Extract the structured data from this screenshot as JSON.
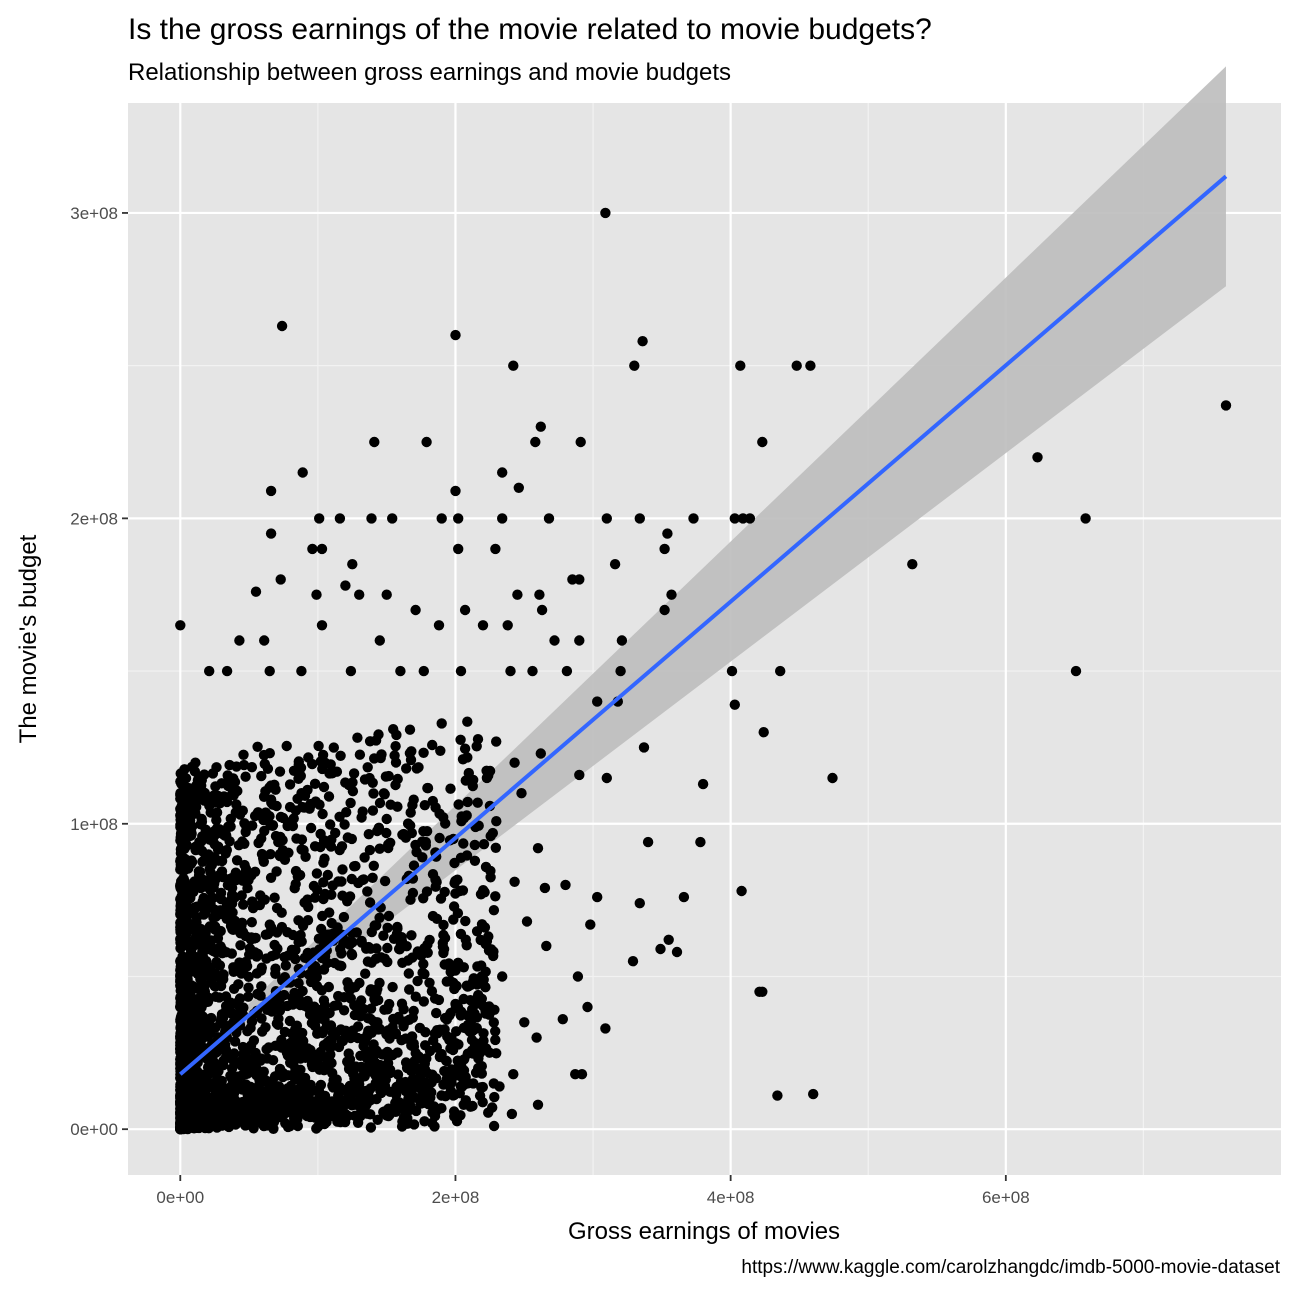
{
  "header": {
    "title": "Is the gross earnings of the movie related to movie budgets?",
    "subtitle": "Relationship between gross earnings and movie budgets"
  },
  "caption": "https://www.kaggle.com/carolzhangdc/imdb-5000-movie-dataset",
  "colors": {
    "panel": "#e5e5e5",
    "grid_major": "#ffffff",
    "grid_minor": "#f2f2f2",
    "points": "#000000",
    "fit_line": "#3366ff",
    "ribbon": "#bdbdbd"
  },
  "chart_data": {
    "type": "scatter",
    "title": "Is the gross earnings of the movie related to movie budgets?",
    "subtitle": "Relationship between gross earnings and movie budgets",
    "xlabel": "Gross earnings of movies",
    "ylabel": "The movie's budget",
    "xlim": [
      -38000000,
      800000000
    ],
    "ylim": [
      -15000000,
      336000000
    ],
    "xticks": [
      0,
      200000000,
      400000000,
      600000000
    ],
    "xtick_labels": [
      "0e+00",
      "2e+08",
      "4e+08",
      "6e+08"
    ],
    "yticks": [
      0,
      100000000,
      200000000,
      300000000
    ],
    "ytick_labels": [
      "0e+00",
      "1e+08",
      "2e+08",
      "3e+08"
    ],
    "grid": true,
    "points": [
      [
        309000000,
        300000000
      ],
      [
        74000000,
        263000000
      ],
      [
        200000000,
        260000000
      ],
      [
        336000000,
        258000000
      ],
      [
        242000000,
        250000000
      ],
      [
        330000000,
        250000000
      ],
      [
        407000000,
        250000000
      ],
      [
        448000000,
        250000000
      ],
      [
        458000000,
        250000000
      ],
      [
        760000000,
        237000000
      ],
      [
        262000000,
        230000000
      ],
      [
        141000000,
        225000000
      ],
      [
        179000000,
        225000000
      ],
      [
        258000000,
        225000000
      ],
      [
        291000000,
        225000000
      ],
      [
        423000000,
        225000000
      ],
      [
        623000000,
        220000000
      ],
      [
        89000000,
        215000000
      ],
      [
        234000000,
        215000000
      ],
      [
        66000000,
        209000000
      ],
      [
        200000000,
        209000000
      ],
      [
        246000000,
        210000000
      ],
      [
        658000000,
        200000000
      ],
      [
        310000000,
        200000000
      ],
      [
        334000000,
        200000000
      ],
      [
        373000000,
        200000000
      ],
      [
        403000000,
        200000000
      ],
      [
        409000000,
        200000000
      ],
      [
        414000000,
        200000000
      ],
      [
        268000000,
        200000000
      ],
      [
        234000000,
        200000000
      ],
      [
        101000000,
        200000000
      ],
      [
        116000000,
        200000000
      ],
      [
        139000000,
        200000000
      ],
      [
        154000000,
        200000000
      ],
      [
        190000000,
        200000000
      ],
      [
        202000000,
        200000000
      ],
      [
        66000000,
        195000000
      ],
      [
        96000000,
        190000000
      ],
      [
        103000000,
        190000000
      ],
      [
        202000000,
        190000000
      ],
      [
        229000000,
        190000000
      ],
      [
        352000000,
        190000000
      ],
      [
        354000000,
        195000000
      ],
      [
        532000000,
        185000000
      ],
      [
        316000000,
        185000000
      ],
      [
        261000000,
        175000000
      ],
      [
        290000000,
        180000000
      ],
      [
        125000000,
        185000000
      ],
      [
        120000000,
        178000000
      ],
      [
        73000000,
        180000000
      ],
      [
        55000000,
        176000000
      ],
      [
        99000000,
        175000000
      ],
      [
        130000000,
        175000000
      ],
      [
        150000000,
        175000000
      ],
      [
        171000000,
        170000000
      ],
      [
        207000000,
        170000000
      ],
      [
        352000000,
        170000000
      ],
      [
        357000000,
        175000000
      ],
      [
        245000000,
        175000000
      ],
      [
        285000000,
        180000000
      ],
      [
        263000000,
        170000000
      ],
      [
        0,
        165000000
      ],
      [
        188000000,
        165000000
      ],
      [
        220000000,
        165000000
      ],
      [
        238000000,
        165000000
      ],
      [
        272000000,
        160000000
      ],
      [
        290000000,
        160000000
      ],
      [
        321000000,
        160000000
      ],
      [
        43000000,
        160000000
      ],
      [
        61000000,
        160000000
      ],
      [
        145000000,
        160000000
      ],
      [
        103000000,
        165000000
      ],
      [
        651000000,
        150000000
      ],
      [
        436000000,
        150000000
      ],
      [
        401000000,
        150000000
      ],
      [
        281000000,
        150000000
      ],
      [
        256000000,
        150000000
      ],
      [
        240000000,
        150000000
      ],
      [
        320000000,
        150000000
      ],
      [
        21000000,
        150000000
      ],
      [
        34000000,
        150000000
      ],
      [
        65000000,
        150000000
      ],
      [
        88000000,
        150000000
      ],
      [
        124000000,
        150000000
      ],
      [
        160000000,
        150000000
      ],
      [
        177000000,
        150000000
      ],
      [
        204000000,
        150000000
      ],
      [
        403000000,
        139000000
      ],
      [
        303000000,
        140000000
      ],
      [
        318000000,
        140000000
      ],
      [
        424000000,
        130000000
      ],
      [
        337000000,
        125000000
      ],
      [
        262000000,
        123000000
      ],
      [
        243000000,
        120000000
      ],
      [
        474000000,
        115000000
      ],
      [
        290000000,
        116000000
      ],
      [
        310000000,
        115000000
      ],
      [
        380000000,
        113000000
      ],
      [
        248000000,
        110000000
      ],
      [
        340000000,
        94000000
      ],
      [
        378000000,
        94000000
      ],
      [
        408000000,
        78000000
      ],
      [
        366000000,
        76000000
      ],
      [
        280000000,
        80000000
      ],
      [
        265000000,
        79000000
      ],
      [
        298000000,
        67000000
      ],
      [
        252000000,
        68000000
      ],
      [
        334000000,
        74000000
      ],
      [
        303000000,
        76000000
      ],
      [
        243000000,
        81000000
      ],
      [
        260000000,
        92000000
      ],
      [
        329000000,
        55000000
      ],
      [
        349000000,
        59000000
      ],
      [
        355000000,
        62000000
      ],
      [
        361000000,
        58000000
      ],
      [
        266000000,
        60000000
      ],
      [
        423000000,
        45000000
      ],
      [
        289000000,
        50000000
      ],
      [
        296000000,
        40000000
      ],
      [
        309000000,
        33000000
      ],
      [
        278000000,
        36000000
      ],
      [
        250000000,
        35000000
      ],
      [
        259000000,
        30000000
      ],
      [
        234000000,
        50000000
      ],
      [
        219000000,
        50000000
      ],
      [
        421000000,
        45000000
      ],
      [
        434000000,
        11000000
      ],
      [
        460000000,
        11500000
      ],
      [
        287000000,
        18000000
      ],
      [
        292000000,
        18000000
      ],
      [
        260000000,
        8000000
      ],
      [
        242000000,
        18000000
      ],
      [
        241000000,
        5000000
      ],
      [
        232000000,
        14000000
      ],
      [
        206000000,
        8000000
      ],
      [
        200000000,
        4000000
      ],
      [
        183000000,
        2000000
      ],
      [
        213000000,
        15000000
      ],
      [
        218000000,
        25000000
      ],
      [
        186000000,
        38000000
      ],
      [
        208000000,
        33000000
      ]
    ],
    "fit_line": {
      "method": "lm",
      "x_start": 0,
      "y_start": 18000000,
      "x_end": 760000000,
      "y_end": 312000000,
      "se_start": 1500000,
      "se_end": 12000000
    }
  }
}
